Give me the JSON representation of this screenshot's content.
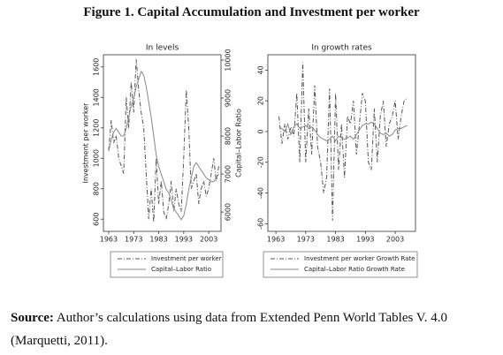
{
  "title": "Figure 1. Capital Accumulation and Investment per worker",
  "chart_data": [
    {
      "type": "line",
      "title": "In levels",
      "ylabel": "Investment per worker",
      "y2label": "Capital–Labor Ratio",
      "x": [
        1963,
        1964,
        1965,
        1966,
        1967,
        1968,
        1969,
        1970,
        1971,
        1972,
        1973,
        1974,
        1975,
        1976,
        1977,
        1978,
        1979,
        1980,
        1981,
        1982,
        1983,
        1984,
        1985,
        1986,
        1987,
        1988,
        1989,
        1990,
        1991,
        1992,
        1993,
        1994,
        1995,
        1996,
        1997,
        1998,
        1999,
        2000,
        2001,
        2002,
        2003,
        2004,
        2005,
        2006,
        2007
      ],
      "xlim": [
        1960.9,
        2007.9
      ],
      "xticks": [
        1963,
        1973,
        1983,
        1993,
        2003
      ],
      "ylim": [
        520,
        1680
      ],
      "yticks": [
        600,
        800,
        1000,
        1200,
        1400,
        1600
      ],
      "y2lim": [
        5490,
        10140
      ],
      "y2ticks": [
        6000,
        7000,
        8000,
        9000,
        10000
      ],
      "series": [
        {
          "name": "Investment per worker",
          "color": "#555555",
          "style": "dashdot",
          "values": [
            1050,
            1250,
            1100,
            1150,
            1000,
            950,
            900,
            1400,
            1200,
            1500,
            1300,
            1650,
            1450,
            1300,
            1200,
            900,
            600,
            800,
            580,
            1000,
            700,
            850,
            650,
            600,
            700,
            850,
            650,
            800,
            700,
            650,
            1000,
            1450,
            1200,
            800,
            850,
            900,
            700,
            800,
            850,
            750,
            800,
            900,
            1000,
            850,
            950
          ]
        },
        {
          "name": "Capital–Labor Ratio",
          "color": "#888888",
          "style": "solid",
          "axis": "y2",
          "values": [
            7600,
            7900,
            8100,
            8200,
            8100,
            8000,
            8000,
            8200,
            8500,
            8800,
            9000,
            9300,
            9500,
            9700,
            9600,
            9300,
            8900,
            8500,
            8000,
            7500,
            7200,
            7000,
            6800,
            6600,
            6500,
            6300,
            6100,
            6000,
            5900,
            5800,
            5900,
            6200,
            6600,
            6900,
            7200,
            7300,
            7200,
            7100,
            7000,
            6900,
            6850,
            6800,
            6800,
            6900,
            7000
          ]
        }
      ]
    },
    {
      "type": "line",
      "title": "In growth rates",
      "x": [
        1964,
        1965,
        1966,
        1967,
        1968,
        1969,
        1970,
        1971,
        1972,
        1973,
        1974,
        1975,
        1976,
        1977,
        1978,
        1979,
        1980,
        1981,
        1982,
        1983,
        1984,
        1985,
        1986,
        1987,
        1988,
        1989,
        1990,
        1991,
        1992,
        1993,
        1994,
        1995,
        1996,
        1997,
        1998,
        1999,
        2000,
        2001,
        2002,
        2003,
        2004,
        2005,
        2006,
        2007
      ],
      "xlim": [
        1960.3,
        2009.8
      ],
      "xticks": [
        1963,
        1973,
        1983,
        1993,
        2003
      ],
      "ylim": [
        -65,
        50
      ],
      "yticks": [
        -60,
        -40,
        -20,
        0,
        20,
        40
      ],
      "series": [
        {
          "name": "Investment per worker Growth Rate",
          "color": "#555555",
          "style": "dashdot",
          "values": [
            10,
            -8,
            5,
            -5,
            3,
            -3,
            25,
            -20,
            45,
            -20,
            15,
            -15,
            30,
            -10,
            -20,
            -40,
            -30,
            28,
            -58,
            25,
            -25,
            5,
            -30,
            10,
            5,
            20,
            -15,
            5,
            25,
            20,
            -20,
            -25,
            15,
            -20,
            10,
            20,
            -10,
            5,
            10,
            20,
            -5,
            10,
            20,
            22
          ]
        },
        {
          "name": "Capital–Labor Ratio Growth Rate",
          "color": "#888888",
          "style": "solid",
          "values": [
            3,
            2,
            0,
            5,
            -2,
            3,
            5,
            2,
            3,
            4,
            2,
            3,
            1,
            -2,
            -4,
            -5,
            -6,
            -5,
            -3,
            -6,
            -3,
            -4,
            -5,
            -4,
            -3,
            -5,
            -2,
            1,
            4,
            5,
            5,
            6,
            5,
            2,
            -1,
            -2,
            -1,
            -3,
            -2,
            1,
            2,
            2,
            3,
            4
          ]
        }
      ]
    }
  ],
  "source": {
    "label": "Source:",
    "text": "Author’s calculations using data from Extended Penn World Tables V. 4.0 (Marquetti, 2011)."
  }
}
